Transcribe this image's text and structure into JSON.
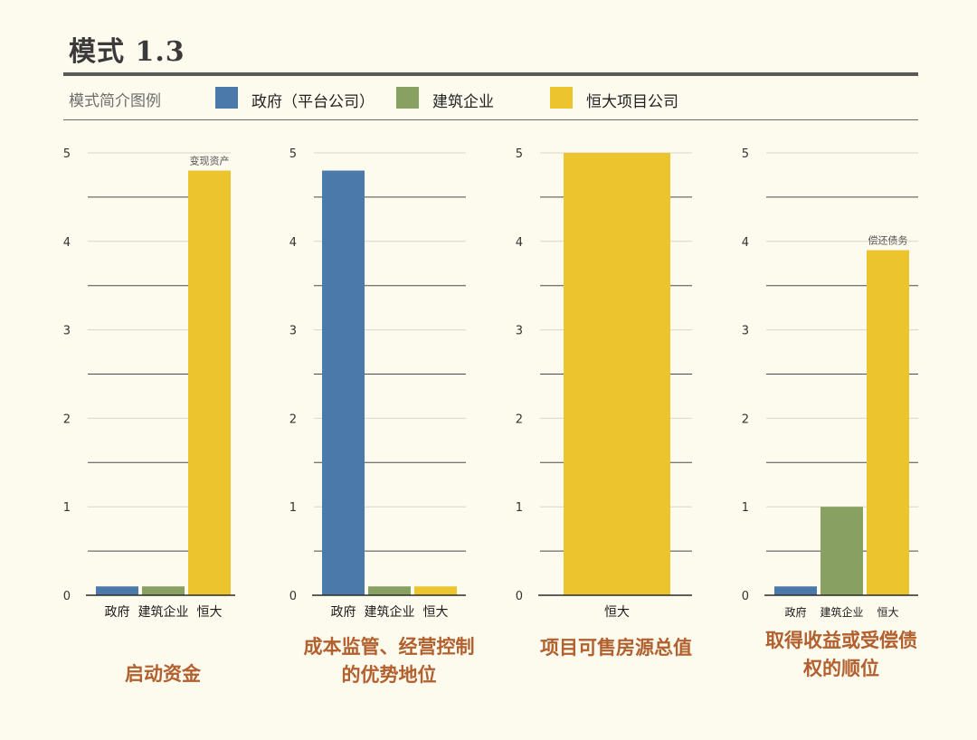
{
  "title": "模式 1.3",
  "legend": {
    "label": "模式简介图例",
    "items": [
      {
        "name": "政府（平台公司）",
        "color": "#4a79aa"
      },
      {
        "name": "建筑企业",
        "color": "#88a162"
      },
      {
        "name": "恒大项目公司",
        "color": "#ecc42e"
      }
    ]
  },
  "chart_data": [
    {
      "type": "bar",
      "categories": [
        "政府",
        "建筑企业",
        "恒大"
      ],
      "values": [
        0.1,
        0.1,
        4.8
      ],
      "colors": [
        "#4a79aa",
        "#88a162",
        "#ecc42e"
      ],
      "annotations": [
        {
          "category": "恒大",
          "text": "变现资产"
        }
      ],
      "ylim": [
        0,
        5
      ],
      "yticks": [
        0,
        1,
        2,
        3,
        4,
        5
      ],
      "caption": "启动资金"
    },
    {
      "type": "bar",
      "categories": [
        "政府",
        "建筑企业",
        "恒大"
      ],
      "values": [
        4.8,
        0.1,
        0.1
      ],
      "colors": [
        "#4a79aa",
        "#88a162",
        "#ecc42e"
      ],
      "annotations": [],
      "ylim": [
        0,
        5
      ],
      "yticks": [
        0,
        1,
        2,
        3,
        4,
        5
      ],
      "caption": "成本监管、经营控制的优势地位"
    },
    {
      "type": "bar",
      "categories": [
        "恒大"
      ],
      "values": [
        5.0
      ],
      "colors": [
        "#ecc42e"
      ],
      "annotations": [],
      "ylim": [
        0,
        5
      ],
      "yticks": [
        0,
        1,
        2,
        3,
        4,
        5
      ],
      "caption": "项目可售房源总值"
    },
    {
      "type": "bar",
      "categories": [
        "政府",
        "建筑企业",
        "恒大"
      ],
      "values": [
        0.1,
        1.0,
        3.9
      ],
      "colors": [
        "#4a79aa",
        "#88a162",
        "#ecc42e"
      ],
      "annotations": [
        {
          "category": "恒大",
          "text": "偿还债务"
        }
      ],
      "ylim": [
        0,
        5
      ],
      "yticks": [
        0,
        1,
        2,
        3,
        4,
        5
      ],
      "caption": "取得收益或受偿债权的顺位"
    }
  ]
}
